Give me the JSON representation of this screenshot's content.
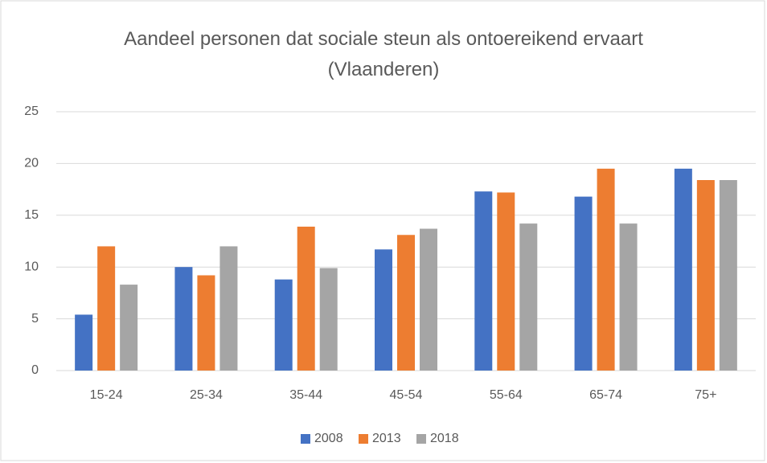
{
  "chart_data": {
    "type": "bar",
    "title": "Aandeel personen dat sociale steun als ontoereikend ervaart  (Vlaanderen)",
    "categories": [
      "15-24",
      "25-34",
      "35-44",
      "45-54",
      "55-64",
      "65-74",
      "75+"
    ],
    "series": [
      {
        "name": "2008",
        "color": "#4472c4",
        "values": [
          5.4,
          10.0,
          8.8,
          11.7,
          17.3,
          16.8,
          19.5
        ]
      },
      {
        "name": "2013",
        "color": "#ed7d31",
        "values": [
          12.0,
          9.2,
          13.9,
          13.1,
          17.2,
          19.5,
          18.4
        ]
      },
      {
        "name": "2018",
        "color": "#a5a5a5",
        "values": [
          8.3,
          12.0,
          9.9,
          13.7,
          14.2,
          14.2,
          18.4
        ]
      }
    ],
    "ylim": [
      0,
      25
    ],
    "yticks": [
      0,
      5,
      10,
      15,
      20,
      25
    ],
    "grid": true,
    "legend": "bottom"
  }
}
